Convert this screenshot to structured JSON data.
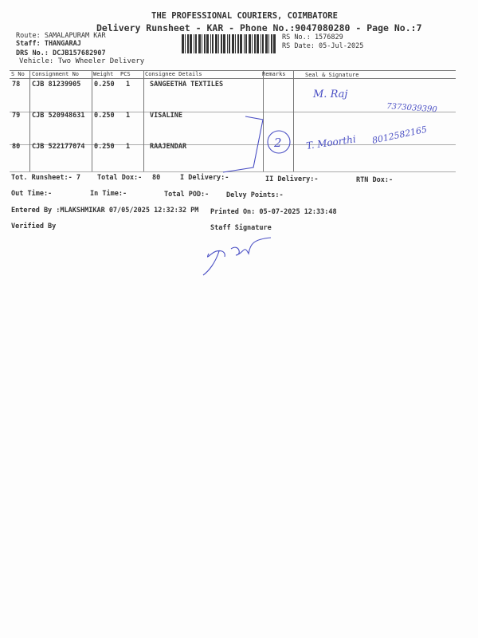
{
  "header": {
    "company": "THE PROFESSIONAL COURIERS, COIMBATORE",
    "subtitle": "Delivery Runsheet - KAR - Phone No.:9047080280 - Page No.:7",
    "route": "Route: SAMALAPURAM KAR",
    "staff": "Staff: THANGARAJ",
    "drs_no": "DRS No.: DCJB157682907",
    "vehicle": "Vehicle: Two Wheeler Delivery",
    "rs_no": "RS No.: 1576829",
    "rs_date": "RS Date: 05-Jul-2025"
  },
  "table": {
    "columns": [
      "S No",
      "Consignment No",
      "Weight",
      "PCS",
      "Consignee Details",
      "Remarks",
      "Seal & Signature"
    ],
    "rows": [
      {
        "sno": "78",
        "consignment": "CJB 81239905",
        "weight": "0.250",
        "pcs": "1",
        "consignee": "SANGEETHA TEXTILES"
      },
      {
        "sno": "79",
        "consignment": "CJB 520948631",
        "weight": "0.250",
        "pcs": "1",
        "consignee": "VISALINE"
      },
      {
        "sno": "80",
        "consignment": "CJB 522177074",
        "weight": "0.250",
        "pcs": "1",
        "consignee": "RAAJENDAR"
      }
    ]
  },
  "handwriting": {
    "sig1": "M. Raj",
    "phone1": "7373039390",
    "sig2": "T. Moorthi",
    "phone2": "8012582165",
    "remark": "2"
  },
  "totals": {
    "runsheet": "Tot. Runsheet:- 7",
    "total_dox": "Total Dox:-",
    "total_dox_val": "80",
    "i_delivery": "I Delivery:-",
    "ii_delivery": "II Delivery:-",
    "rtn_dox": "RTN Dox:-",
    "out_time": "Out Time:-",
    "in_time": "In Time:-",
    "total_pod": "Total POD:-",
    "delvy_points": "Delvy Points:-"
  },
  "footer": {
    "entered_by": "Entered By :MLAKSHMIKAR 07/05/2025 12:32:32 PM",
    "printed_on": "Printed On: 05-07-2025 12:33:48",
    "verified_by": "Verified By",
    "staff_signature": "Staff Signature"
  },
  "colors": {
    "ink": "#4a4fc4",
    "text": "#333333"
  }
}
